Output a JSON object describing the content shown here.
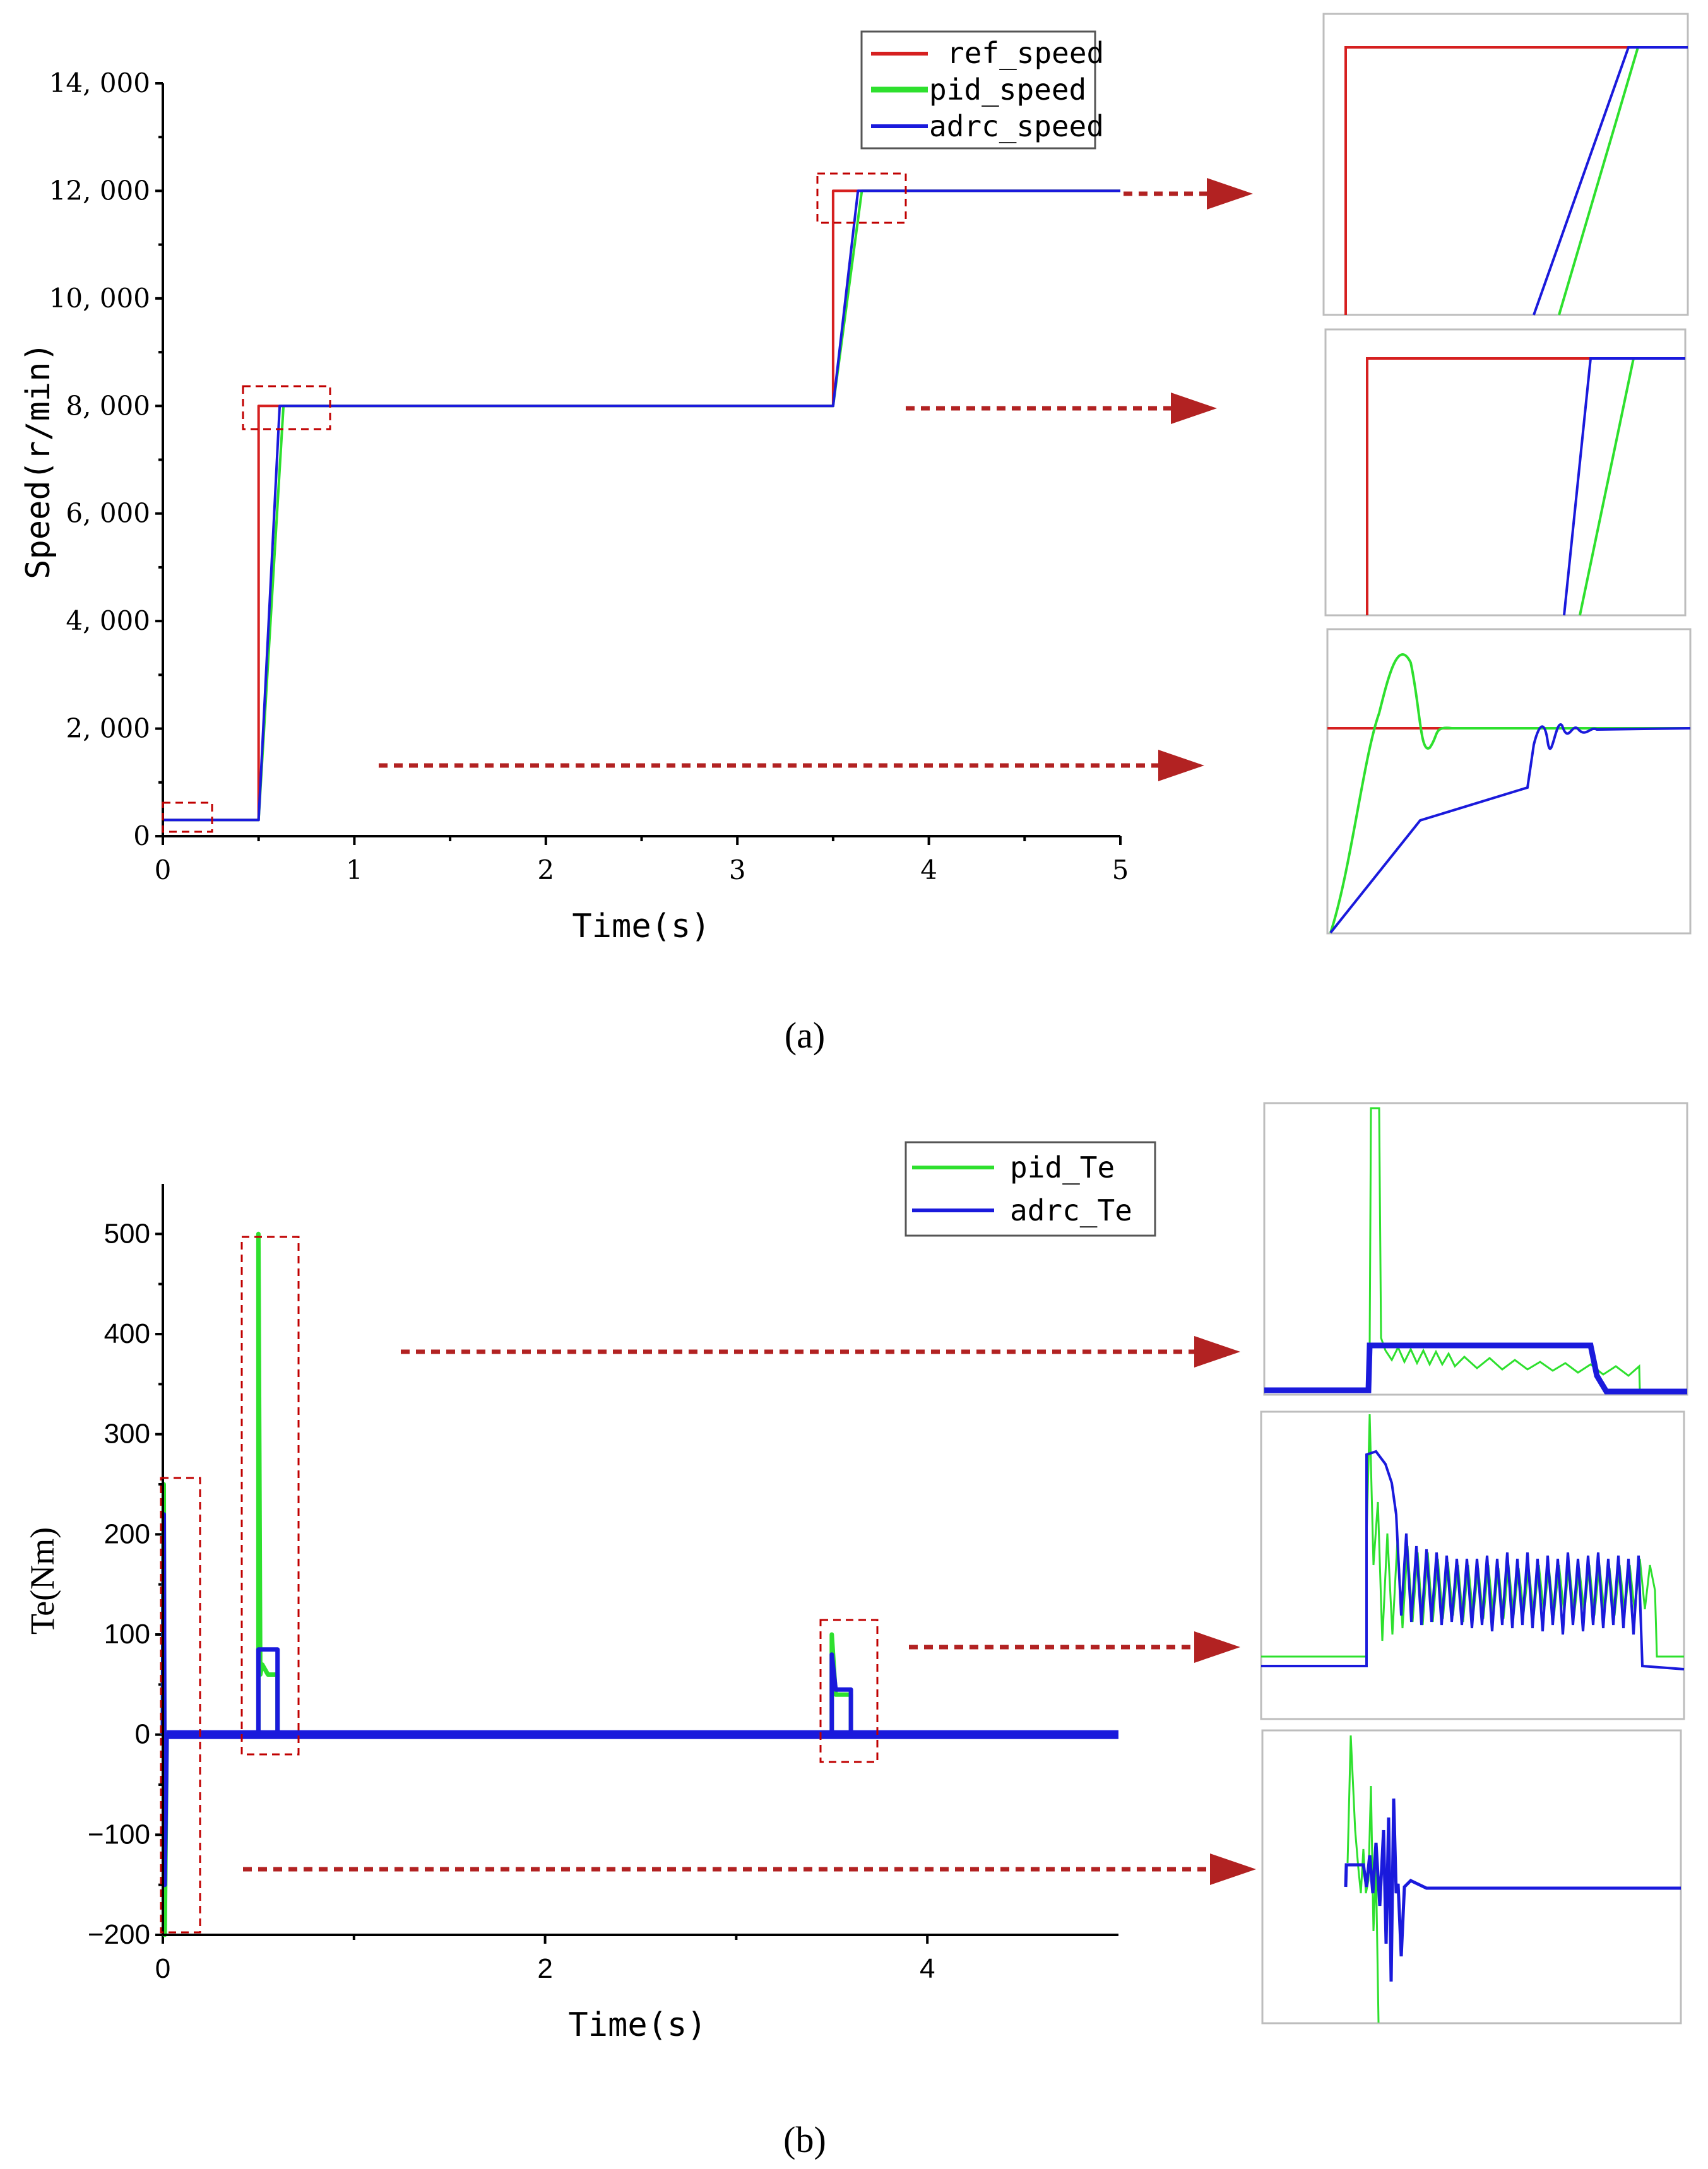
{
  "chart_data": [
    {
      "id": "a",
      "type": "line",
      "caption": "(a)",
      "xlabel": "Time(s)",
      "ylabel": "Speed(r/min)",
      "xlim": [
        0,
        5
      ],
      "ylim": [
        0,
        14000
      ],
      "xticks": [
        0,
        1,
        2,
        3,
        4,
        5
      ],
      "yticks": [
        0,
        2000,
        4000,
        6000,
        8000,
        10000,
        12000,
        14000
      ],
      "ytick_labels": [
        "0",
        "2, 000",
        "4, 000",
        "6, 000",
        "8, 000",
        "10, 000",
        "12, 000",
        "14, 000"
      ],
      "legend": "top-right",
      "series": [
        {
          "name": "ref_speed",
          "color": "#d62020",
          "x": [
            0,
            0.5,
            0.5,
            3.5,
            3.5,
            5
          ],
          "y": [
            300,
            300,
            8000,
            8000,
            12000,
            12000
          ]
        },
        {
          "name": "pid_speed",
          "color": "#2ee02e",
          "x": [
            0,
            0.5,
            0.63,
            3.5,
            3.65,
            5
          ],
          "y": [
            300,
            300,
            8000,
            8000,
            12000,
            12000
          ]
        },
        {
          "name": "adrc_speed",
          "color": "#1a1adc",
          "x": [
            0,
            0.5,
            0.61,
            3.5,
            3.63,
            5
          ],
          "y": [
            300,
            300,
            8000,
            8000,
            12000,
            12000
          ]
        }
      ]
    },
    {
      "id": "b",
      "type": "line",
      "caption": "(b)",
      "xlabel": "Time(s)",
      "ylabel": "Te(Nm)",
      "xlim": [
        0,
        5
      ],
      "ylim": [
        -200,
        550
      ],
      "xticks": [
        0,
        2,
        4
      ],
      "yticks": [
        -200,
        -100,
        0,
        100,
        200,
        300,
        400,
        500
      ],
      "ytick_labels": [
        "−200",
        "−100",
        "0",
        "100",
        "200",
        "300",
        "400",
        "500"
      ],
      "legend": "top-right",
      "series": [
        {
          "name": "pid_Te",
          "color": "#2ee02e",
          "x": [
            0,
            0.005,
            0.01,
            0.02,
            0.5,
            0.5,
            0.51,
            0.52,
            0.55,
            0.6,
            0.6,
            3.5,
            3.5,
            3.52,
            3.6,
            3.6,
            5
          ],
          "y": [
            0,
            250,
            -200,
            0,
            0,
            500,
            60,
            70,
            60,
            60,
            0,
            0,
            100,
            40,
            40,
            0,
            0
          ]
        },
        {
          "name": "adrc_Te",
          "color": "#1a1adc",
          "x": [
            0,
            0.005,
            0.01,
            0.02,
            0.5,
            0.5,
            0.55,
            0.6,
            0.6,
            3.5,
            3.5,
            3.52,
            3.6,
            3.6,
            5
          ],
          "y": [
            0,
            220,
            -150,
            0,
            0,
            85,
            85,
            85,
            0,
            0,
            80,
            45,
            45,
            0,
            0
          ]
        }
      ]
    }
  ]
}
